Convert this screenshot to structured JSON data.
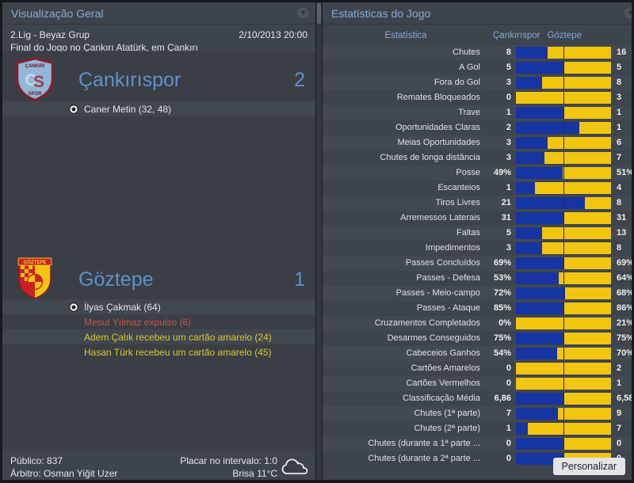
{
  "left_panel": {
    "title": "Visualização Geral",
    "competition": "2.Lig - Beyaz Grup",
    "datetime": "2/10/2013 20:00",
    "venue_line": "Final do Jogo no Çankırı Atatürk, em Çankırı",
    "home_team": {
      "name": "Çankırıspor",
      "score": "2",
      "events": [
        {
          "type": "goal",
          "text": "Caner Metin (32, 48)"
        }
      ]
    },
    "away_team": {
      "name": "Göztepe",
      "score": "1",
      "events": [
        {
          "type": "goal",
          "text": "İlyas Çakmak (64)"
        },
        {
          "type": "red",
          "text": "Mesut Yılmaz expulso (6)"
        },
        {
          "type": "yellow",
          "text": "Adem Çalık recebeu um cartão amarelo (24)"
        },
        {
          "type": "yellow",
          "text": "Hasan Türk recebeu um cartão amarelo (45)"
        }
      ]
    },
    "footer": {
      "attendance": "Público: 837",
      "referee": "Árbitro: Osman Yiğit Uzer",
      "halftime": "Placar no intervalo: 1:0",
      "weather": "Brisa 11°C"
    }
  },
  "right_panel": {
    "title": "Estatísticas do Jogo",
    "columns": {
      "stat": "Estatística",
      "home": "Çankırıspor",
      "away": "Göztepe"
    },
    "personalize_label": "Personalizar",
    "bar_colors": {
      "home": "#1634a2",
      "away": "#f2c50f"
    },
    "stats": [
      {
        "label": "Chutes",
        "home": "8",
        "away": "16"
      },
      {
        "label": "A Gol",
        "home": "5",
        "away": "5"
      },
      {
        "label": "Fora do Gol",
        "home": "3",
        "away": "8"
      },
      {
        "label": "Remates Bloqueados",
        "home": "0",
        "away": "3"
      },
      {
        "label": "Trave",
        "home": "1",
        "away": "1"
      },
      {
        "label": "Oportunidades Claras",
        "home": "2",
        "away": "1"
      },
      {
        "label": "Meias Oportunidades",
        "home": "3",
        "away": "6"
      },
      {
        "label": "Chutes de longa distância",
        "home": "3",
        "away": "7"
      },
      {
        "label": "Posse",
        "home": "49%",
        "away": "51%"
      },
      {
        "label": "Escanteios",
        "home": "1",
        "away": "4"
      },
      {
        "label": "Tiros Livres",
        "home": "21",
        "away": "8"
      },
      {
        "label": "Arremessos Laterais",
        "home": "31",
        "away": "31"
      },
      {
        "label": "Faltas",
        "home": "5",
        "away": "13"
      },
      {
        "label": "Impedimentos",
        "home": "3",
        "away": "8"
      },
      {
        "label": "Passes Concluídos",
        "home": "69%",
        "away": "69%"
      },
      {
        "label": "Passes - Defesa",
        "home": "53%",
        "away": "64%"
      },
      {
        "label": "Passes - Meio-campo",
        "home": "72%",
        "away": "68%"
      },
      {
        "label": "Passes - Ataque",
        "home": "85%",
        "away": "86%"
      },
      {
        "label": "Cruzamentos Completados",
        "home": "0%",
        "away": "21%"
      },
      {
        "label": "Desarmes Conseguidos",
        "home": "75%",
        "away": "75%"
      },
      {
        "label": "Cabeceios Ganhos",
        "home": "54%",
        "away": "70%"
      },
      {
        "label": "Cartões Amarelos",
        "home": "0",
        "away": "2"
      },
      {
        "label": "Cartões Vermelhos",
        "home": "0",
        "away": "1"
      },
      {
        "label": "Classificação Média",
        "home": "6,86",
        "away": "6,58"
      },
      {
        "label": "Chutes (1ª parte)",
        "home": "7",
        "away": "9"
      },
      {
        "label": "Chutes (2ª parte)",
        "home": "1",
        "away": "7"
      },
      {
        "label": "Chutes (durante a 1ª parte ...",
        "home": "0",
        "away": "0"
      },
      {
        "label": "Chutes (durante a 2ª parte ...",
        "home": "0",
        "away": "0"
      }
    ]
  }
}
